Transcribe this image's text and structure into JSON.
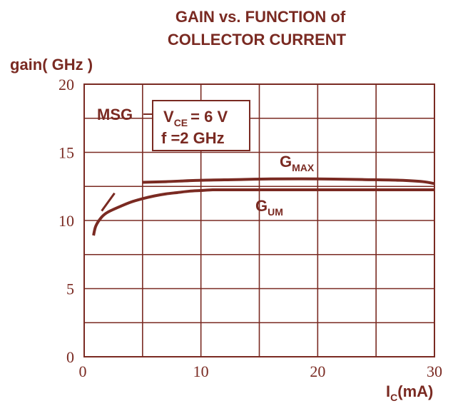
{
  "colors": {
    "ink": "#7a2a22"
  },
  "chart_data": {
    "type": "line",
    "title_lines": [
      "GAIN  vs. FUNCTION of",
      "COLLECTOR CURRENT"
    ],
    "ylabel": "gain( GHz )",
    "xlabel_main": "I",
    "xlabel_sub": "C",
    "xlabel_unit": "(mA)",
    "xlim": [
      0,
      30
    ],
    "ylim": [
      0,
      20
    ],
    "x_ticks": [
      0,
      10,
      20,
      30
    ],
    "y_ticks": [
      0,
      5,
      10,
      15,
      20
    ],
    "x_grid": [
      0,
      5,
      10,
      15,
      20,
      25,
      30
    ],
    "y_grid": [
      0,
      2.5,
      5,
      7.5,
      10,
      12.5,
      15,
      17.5,
      20
    ],
    "grid": true,
    "conditions": {
      "vce_main": "V",
      "vce_sub": "CE",
      "vce_value": "= 6 V",
      "freq": "f =2 GHz"
    },
    "series": [
      {
        "name": "MSG",
        "x": [
          1.5,
          2.6
        ],
        "y": [
          10.7,
          12.0
        ]
      },
      {
        "name_main": "G",
        "name_sub": "MAX",
        "x": [
          5,
          7,
          10,
          13,
          16,
          20,
          24,
          27,
          29,
          30
        ],
        "y": [
          12.8,
          12.85,
          12.95,
          13.0,
          13.05,
          13.05,
          13.0,
          12.95,
          12.85,
          12.7
        ]
      },
      {
        "name_main": "G",
        "name_sub": "UM",
        "x": [
          0.8,
          1.0,
          1.5,
          2.0,
          3.0,
          4.0,
          5.0,
          6.0,
          7.0,
          8.0,
          9.0,
          10.0,
          11.0,
          12.0,
          15.0,
          20.0,
          25.0,
          30.0
        ],
        "y": [
          8.9,
          9.6,
          10.25,
          10.6,
          11.0,
          11.35,
          11.6,
          11.8,
          11.95,
          12.05,
          12.15,
          12.2,
          12.25,
          12.25,
          12.25,
          12.25,
          12.25,
          12.25
        ]
      }
    ]
  }
}
